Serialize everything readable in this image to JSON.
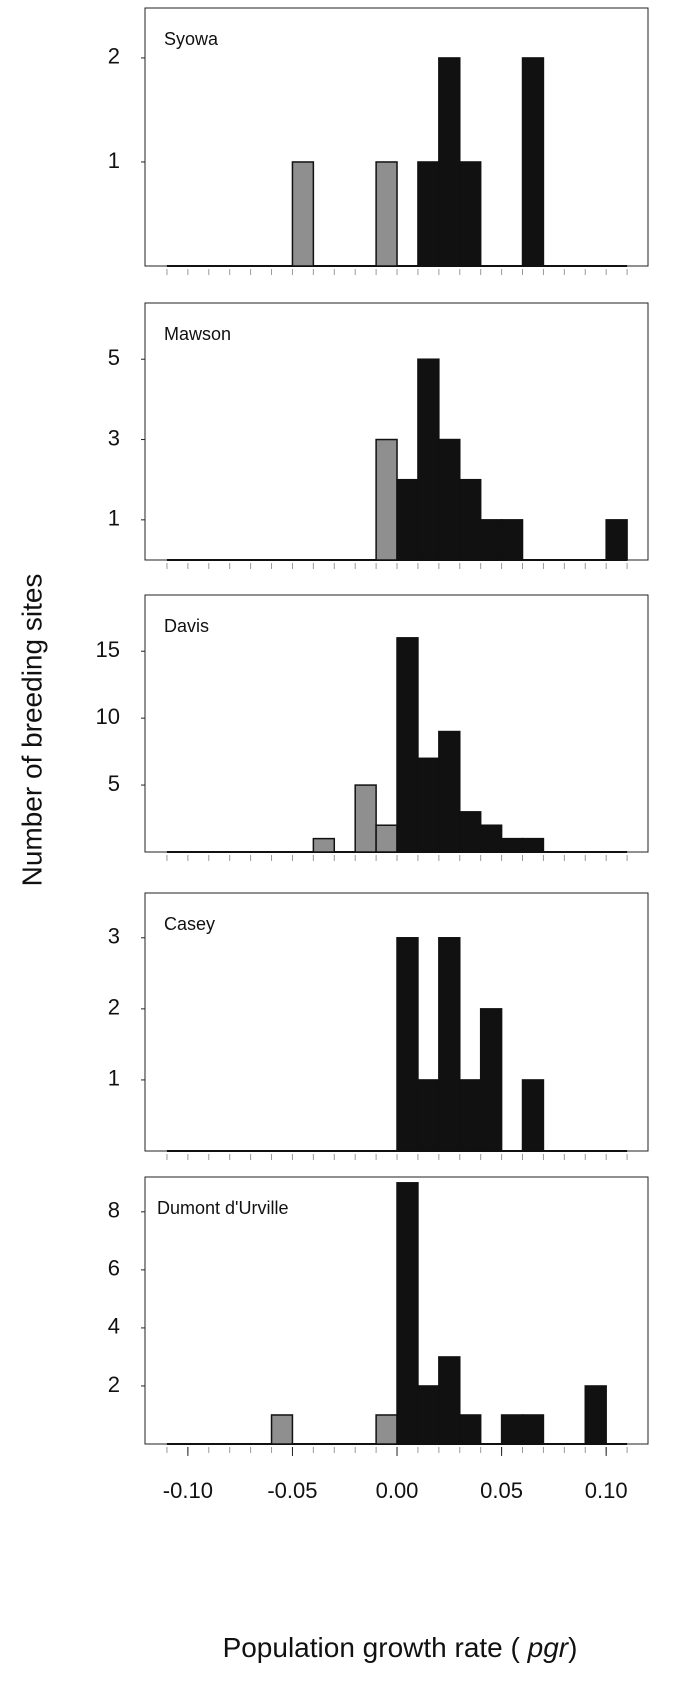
{
  "ylabel": "Number of breeding sites",
  "xlabel": [
    "Population growth rate ( ",
    "pgr",
    ")"
  ],
  "color_negative": "#8f8f8f",
  "color_positive": "#111111",
  "chart_data": [
    {
      "type": "histogram",
      "title": "Syowa",
      "bins": [
        -0.11,
        -0.1,
        -0.09,
        -0.08,
        -0.07,
        -0.06,
        -0.05,
        -0.04,
        -0.03,
        -0.02,
        -0.01,
        0,
        0.01,
        0.02,
        0.03,
        0.04,
        0.05,
        0.06,
        0.07,
        0.08,
        0.09,
        0.1,
        0.11
      ],
      "values": [
        0,
        0,
        0,
        0,
        0,
        0,
        1,
        0,
        0,
        0,
        1,
        0,
        1,
        2,
        1,
        0,
        0,
        2,
        0,
        0,
        0,
        0
      ],
      "xlim": [
        -0.1205,
        0.12
      ],
      "ylim": [
        0,
        2.48
      ],
      "yticks": [
        1,
        2
      ]
    },
    {
      "type": "histogram",
      "title": "Mawson",
      "bins": [
        -0.11,
        -0.1,
        -0.09,
        -0.08,
        -0.07,
        -0.06,
        -0.05,
        -0.04,
        -0.03,
        -0.02,
        -0.01,
        0,
        0.01,
        0.02,
        0.03,
        0.04,
        0.05,
        0.06,
        0.07,
        0.08,
        0.09,
        0.1,
        0.11
      ],
      "values": [
        0,
        0,
        0,
        0,
        0,
        0,
        0,
        0,
        0,
        0,
        3,
        2,
        5,
        3,
        2,
        1,
        1,
        0,
        0,
        0,
        0,
        1
      ],
      "xlim": [
        -0.1205,
        0.12
      ],
      "ylim": [
        0,
        6.4
      ],
      "yticks": [
        1,
        3,
        5
      ]
    },
    {
      "type": "histogram",
      "title": "Davis",
      "bins": [
        -0.11,
        -0.1,
        -0.09,
        -0.08,
        -0.07,
        -0.06,
        -0.05,
        -0.04,
        -0.03,
        -0.02,
        -0.01,
        0,
        0.01,
        0.02,
        0.03,
        0.04,
        0.05,
        0.06,
        0.07,
        0.08,
        0.09,
        0.1,
        0.11
      ],
      "values": [
        0,
        0,
        0,
        0,
        0,
        0,
        0,
        1,
        0,
        5,
        2,
        16,
        7,
        9,
        3,
        2,
        1,
        1,
        0,
        0,
        0,
        0
      ],
      "xlim": [
        -0.1205,
        0.12
      ],
      "ylim": [
        0,
        19.2
      ],
      "yticks": [
        5,
        10,
        15
      ]
    },
    {
      "type": "histogram",
      "title": "Casey",
      "bins": [
        -0.11,
        -0.1,
        -0.09,
        -0.08,
        -0.07,
        -0.06,
        -0.05,
        -0.04,
        -0.03,
        -0.02,
        -0.01,
        0,
        0.01,
        0.02,
        0.03,
        0.04,
        0.05,
        0.06,
        0.07,
        0.08,
        0.09,
        0.1,
        0.11
      ],
      "values": [
        0,
        0,
        0,
        0,
        0,
        0,
        0,
        0,
        0,
        0,
        0,
        3,
        1,
        3,
        1,
        2,
        0,
        1,
        0,
        0,
        0,
        0
      ],
      "xlim": [
        -0.1205,
        0.12
      ],
      "ylim": [
        0,
        3.63
      ],
      "yticks": [
        1,
        2,
        3
      ]
    },
    {
      "type": "histogram",
      "title": "Dumont d'Urville",
      "bins": [
        -0.11,
        -0.1,
        -0.09,
        -0.08,
        -0.07,
        -0.06,
        -0.05,
        -0.04,
        -0.03,
        -0.02,
        -0.01,
        0,
        0.01,
        0.02,
        0.03,
        0.04,
        0.05,
        0.06,
        0.07,
        0.08,
        0.09,
        0.1,
        0.11
      ],
      "values": [
        0,
        0,
        0,
        0,
        0,
        1,
        0,
        0,
        0,
        0,
        1,
        9,
        2,
        3,
        1,
        0,
        1,
        1,
        0,
        0,
        2,
        0
      ],
      "xlim": [
        -0.1205,
        0.12
      ],
      "ylim": [
        0,
        9.2
      ],
      "yticks": [
        2,
        4,
        6,
        8
      ],
      "xticks": [
        {
          "value": -0.1,
          "label": "-0.10"
        },
        {
          "value": -0.05,
          "label": "-0.05"
        },
        {
          "value": 0,
          "label": "0.00"
        },
        {
          "value": 0.05,
          "label": "0.05"
        },
        {
          "value": 0.1,
          "label": "0.10"
        }
      ]
    }
  ]
}
